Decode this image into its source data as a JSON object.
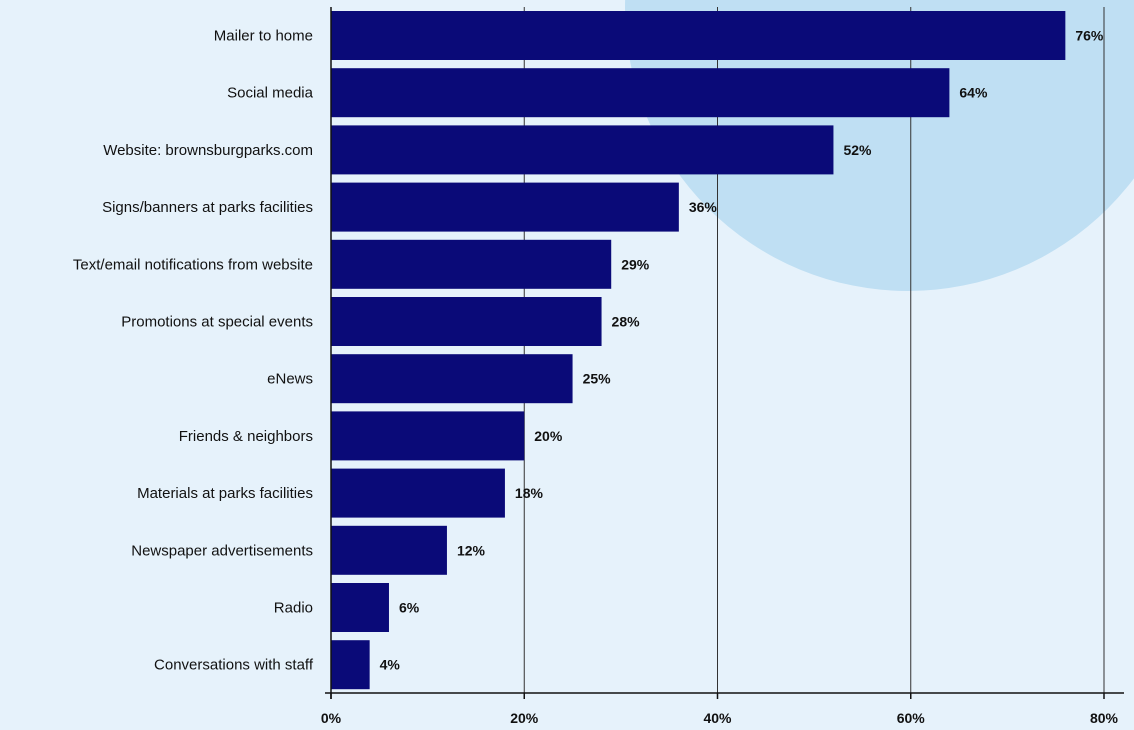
{
  "colors": {
    "background": "#e6f2fb",
    "decor_circle": "#bfdff3",
    "bar": "#0a0a78",
    "gridline": "#333333",
    "axis": "#111111"
  },
  "chart_data": {
    "type": "bar",
    "orientation": "horizontal",
    "title": "",
    "xlabel": "",
    "ylabel": "",
    "xlim": [
      0,
      80
    ],
    "grid": true,
    "legend": "none",
    "categories": [
      "Mailer to home",
      "Social media",
      "Website: brownsburgparks.com",
      "Signs/banners at parks facilities",
      "Text/email notifications from website",
      "Promotions at special events",
      "eNews",
      "Friends & neighbors",
      "Materials at parks facilities",
      "Newspaper advertisements",
      "Radio",
      "Conversations with staff"
    ],
    "values": [
      76,
      64,
      52,
      36,
      29,
      28,
      25,
      20,
      18,
      12,
      6,
      4
    ],
    "value_labels": [
      "76%",
      "64%",
      "52%",
      "36%",
      "29%",
      "28%",
      "25%",
      "20%",
      "18%",
      "12%",
      "6%",
      "4%"
    ],
    "ticks": [
      0,
      20,
      40,
      60,
      80
    ],
    "tick_labels": [
      "0%",
      "20%",
      "40%",
      "60%",
      "80%"
    ]
  }
}
